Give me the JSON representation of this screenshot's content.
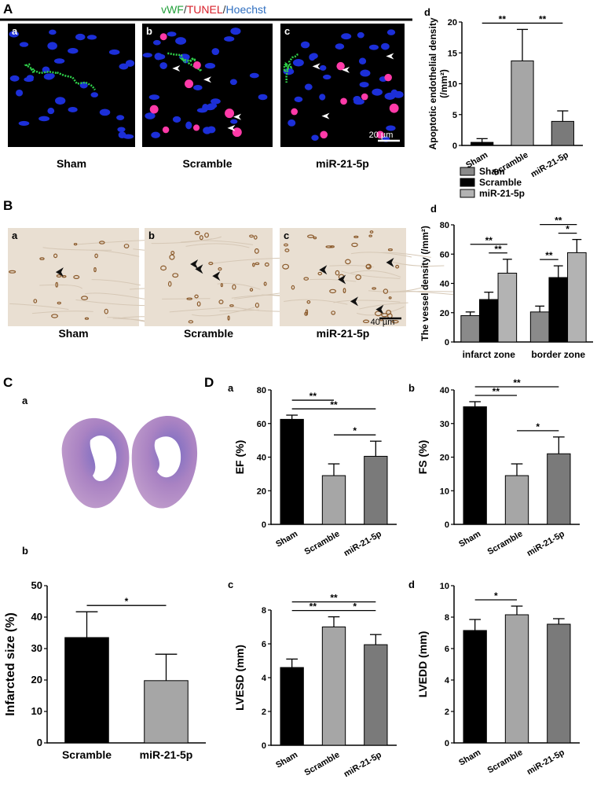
{
  "panel_letters": [
    "A",
    "B",
    "C",
    "D"
  ],
  "stain_title": [
    {
      "text": "vWF",
      "color": "#22a03a"
    },
    {
      "text": "/",
      "color": "#333333"
    },
    {
      "text": "TUNEL",
      "color": "#d8202a"
    },
    {
      "text": "/",
      "color": "#333333"
    },
    {
      "text": "Hoechst",
      "color": "#2f6fc0"
    }
  ],
  "micrographs": [
    {
      "style": "fluorescence",
      "sublabels": [
        "a",
        "b",
        "c"
      ],
      "captions": [
        "Sham",
        "Scramble",
        "miR-21-5p"
      ],
      "scale_bar": "20 µm"
    },
    {
      "style": "ihc",
      "sublabels": [
        "a",
        "b",
        "c"
      ],
      "captions": [
        "Sham",
        "Scramble",
        "miR-21-5p"
      ],
      "scale_bar": "40 µm"
    }
  ],
  "heart_sections": {
    "label": "a"
  },
  "chart_data": [
    {
      "type": "bar",
      "panel": "d",
      "y_label": [
        "Apoptotic endothelial density",
        "(/mm²)"
      ],
      "categories": [
        "Sham",
        "Scramble",
        "miR-21-5p"
      ],
      "values": [
        0.5,
        13.7,
        3.9
      ],
      "errors": [
        0.6,
        5.1,
        1.7
      ],
      "colors": [
        "#000000",
        "#a6a6a6",
        "#7a7a7a"
      ],
      "ylim": [
        0,
        20
      ],
      "yticks": [
        0,
        5,
        10,
        15,
        20
      ],
      "label_rotation": -30,
      "significance": [
        {
          "pair": [
            0,
            1
          ],
          "label": "**"
        },
        {
          "pair": [
            1,
            2
          ],
          "label": "**"
        }
      ]
    },
    {
      "type": "grouped_bar",
      "panel": "d",
      "y_label": "The vessel density  (/mm²)",
      "categories": [
        "infarct zone",
        "border zone"
      ],
      "series": [
        {
          "name": "Sham",
          "color": "#8a8a8a",
          "values": [
            18,
            20.5
          ],
          "errors": [
            2.5,
            4
          ]
        },
        {
          "name": "Scramble",
          "color": "#000000",
          "values": [
            29,
            44
          ],
          "errors": [
            5,
            8
          ]
        },
        {
          "name": "miR-21-5p",
          "color": "#b3b3b3",
          "values": [
            47,
            61
          ],
          "errors": [
            9.5,
            9
          ]
        }
      ],
      "ylim": [
        0,
        80
      ],
      "yticks": [
        0,
        20,
        40,
        60,
        80
      ],
      "legend": "top",
      "label_rotation": 0,
      "significance": [
        {
          "group": 0,
          "pair": [
            1,
            2
          ],
          "label": "**"
        },
        {
          "group": 0,
          "pair": [
            0,
            2
          ],
          "label": "**"
        },
        {
          "group": 1,
          "pair": [
            0,
            1
          ],
          "label": "**"
        },
        {
          "group": 1,
          "pair": [
            1,
            2
          ],
          "label": "*"
        },
        {
          "group": 1,
          "pair": [
            0,
            2
          ],
          "label": "**"
        }
      ]
    },
    {
      "type": "bar",
      "panel": "b",
      "y_label": "Infarcted size (%)",
      "categories": [
        "Scramble",
        "miR-21-5p"
      ],
      "values": [
        33.5,
        19.8
      ],
      "errors": [
        8.2,
        8.4
      ],
      "colors": [
        "#000000",
        "#a6a6a6"
      ],
      "ylim": [
        0,
        50
      ],
      "yticks": [
        0,
        10,
        20,
        30,
        40,
        50
      ],
      "label_rotation": 0,
      "significance": [
        {
          "pair": [
            0,
            1
          ],
          "label": "*"
        }
      ]
    },
    {
      "type": "bar",
      "panel": "a",
      "y_label": "EF (%)",
      "categories": [
        "Sham",
        "Scramble",
        "miR-21-5p"
      ],
      "values": [
        62.5,
        29,
        40.5
      ],
      "errors": [
        2.5,
        7,
        9
      ],
      "colors": [
        "#000000",
        "#a6a6a6",
        "#7a7a7a"
      ],
      "ylim": [
        0,
        80
      ],
      "yticks": [
        0,
        20,
        40,
        60,
        80
      ],
      "label_rotation": -30,
      "significance": [
        {
          "pair": [
            1,
            2
          ],
          "label": "*"
        },
        {
          "pair": [
            0,
            2
          ],
          "label": "**"
        },
        {
          "pair": [
            0,
            1
          ],
          "label": "**"
        }
      ]
    },
    {
      "type": "bar",
      "panel": "b",
      "y_label": "FS (%)",
      "categories": [
        "Sham",
        "Scramble",
        "miR-21-5p"
      ],
      "values": [
        35,
        14.5,
        21
      ],
      "errors": [
        1.5,
        3.5,
        5
      ],
      "colors": [
        "#000000",
        "#a6a6a6",
        "#7a7a7a"
      ],
      "ylim": [
        0,
        40
      ],
      "yticks": [
        0,
        10,
        20,
        30,
        40
      ],
      "label_rotation": -30,
      "significance": [
        {
          "pair": [
            1,
            2
          ],
          "label": "*"
        },
        {
          "pair": [
            0,
            1
          ],
          "label": "**"
        },
        {
          "pair": [
            0,
            2
          ],
          "label": "**"
        }
      ]
    },
    {
      "type": "bar",
      "panel": "c",
      "y_label": "LVESD (mm)",
      "categories": [
        "Sham",
        "Scramble",
        "miR-21-5p"
      ],
      "values": [
        4.6,
        7.0,
        5.95
      ],
      "errors": [
        0.5,
        0.6,
        0.6
      ],
      "colors": [
        "#000000",
        "#a6a6a6",
        "#7a7a7a"
      ],
      "ylim": [
        0,
        8
      ],
      "yticks": [
        0,
        2,
        4,
        6,
        8
      ],
      "label_rotation": -30,
      "significance": [
        {
          "pair": [
            0,
            1
          ],
          "label": "**"
        },
        {
          "pair": [
            1,
            2
          ],
          "label": "*"
        },
        {
          "pair": [
            0,
            2
          ],
          "label": "**"
        }
      ]
    },
    {
      "type": "bar",
      "panel": "d",
      "y_label": "LVEDD (mm)",
      "categories": [
        "Sham",
        "Scramble",
        "miR-21-5p"
      ],
      "values": [
        7.15,
        8.15,
        7.55
      ],
      "errors": [
        0.7,
        0.55,
        0.35
      ],
      "colors": [
        "#000000",
        "#a6a6a6",
        "#7a7a7a"
      ],
      "ylim": [
        0,
        10
      ],
      "yticks": [
        0,
        2,
        4,
        6,
        8,
        10
      ],
      "label_rotation": -30,
      "significance": [
        {
          "pair": [
            0,
            1
          ],
          "label": "*"
        }
      ]
    }
  ]
}
